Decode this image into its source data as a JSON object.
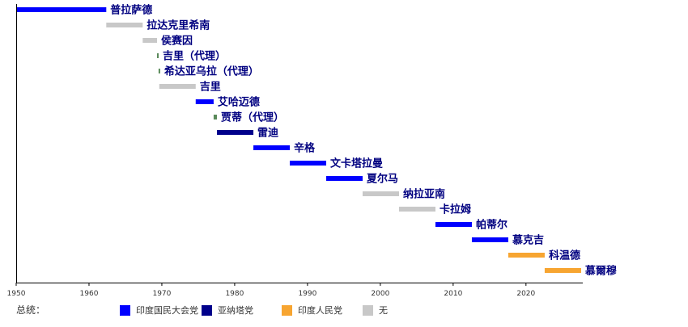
{
  "chart_data": {
    "type": "bar",
    "orientation": "timeline",
    "title": "",
    "xlabel": "",
    "ylabel": "",
    "xlim": [
      1950,
      2027.8
    ],
    "x_ticks": [
      1950,
      1960,
      1970,
      1980,
      1990,
      2000,
      2010,
      2020
    ],
    "grid": false,
    "legend_position": "bottom",
    "legend_title": "总统：",
    "parties": [
      {
        "key": "inc",
        "name": "印度国民大会党",
        "color": "#0000ff"
      },
      {
        "key": "janata",
        "name": "亚纳塔党",
        "color": "#00008b"
      },
      {
        "key": "bjp",
        "name": "印度人民党",
        "color": "#f7a531"
      },
      {
        "key": "none",
        "name": "无",
        "color": "#c8c8c8"
      }
    ],
    "presidents": [
      {
        "name": "普拉萨德",
        "start": 1950.07,
        "end": 1962.37,
        "party": "inc"
      },
      {
        "name": "拉达克里希南",
        "start": 1962.37,
        "end": 1967.37,
        "party": "none"
      },
      {
        "name": "侯赛因",
        "start": 1967.37,
        "end": 1969.34,
        "party": "none"
      },
      {
        "name": "吉里（代理）",
        "start": 1969.34,
        "end": 1969.55,
        "party": "acting"
      },
      {
        "name": "希达亚乌拉（代理）",
        "start": 1969.55,
        "end": 1969.65,
        "party": "acting"
      },
      {
        "name": "吉里",
        "start": 1969.65,
        "end": 1974.65,
        "party": "none"
      },
      {
        "name": "艾哈迈德",
        "start": 1974.65,
        "end": 1977.11,
        "party": "inc"
      },
      {
        "name": "贾蒂（代理）",
        "start": 1977.11,
        "end": 1977.57,
        "party": "acting"
      },
      {
        "name": "雷迪",
        "start": 1977.57,
        "end": 1982.57,
        "party": "janata"
      },
      {
        "name": "辛格",
        "start": 1982.57,
        "end": 1987.57,
        "party": "inc"
      },
      {
        "name": "文卡塔拉曼",
        "start": 1987.57,
        "end": 1992.57,
        "party": "inc"
      },
      {
        "name": "夏尔马",
        "start": 1992.57,
        "end": 1997.57,
        "party": "inc"
      },
      {
        "name": "纳拉亚南",
        "start": 1997.57,
        "end": 2002.57,
        "party": "none"
      },
      {
        "name": "卡拉姆",
        "start": 2002.57,
        "end": 2007.57,
        "party": "none"
      },
      {
        "name": "帕蒂尔",
        "start": 2007.57,
        "end": 2012.57,
        "party": "inc"
      },
      {
        "name": "慕克吉",
        "start": 2012.57,
        "end": 2017.57,
        "party": "inc"
      },
      {
        "name": "科温德",
        "start": 2017.57,
        "end": 2022.57,
        "party": "bjp"
      },
      {
        "name": "慕爾穆",
        "start": 2022.57,
        "end": 2027.57,
        "party": "bjp"
      }
    ],
    "colors": {
      "inc": "#0000ff",
      "janata": "#00008b",
      "bjp": "#f7a531",
      "none": "#c8c8c8",
      "acting": "#5a8a5a",
      "axis": "#000000",
      "label": "#000080"
    }
  }
}
